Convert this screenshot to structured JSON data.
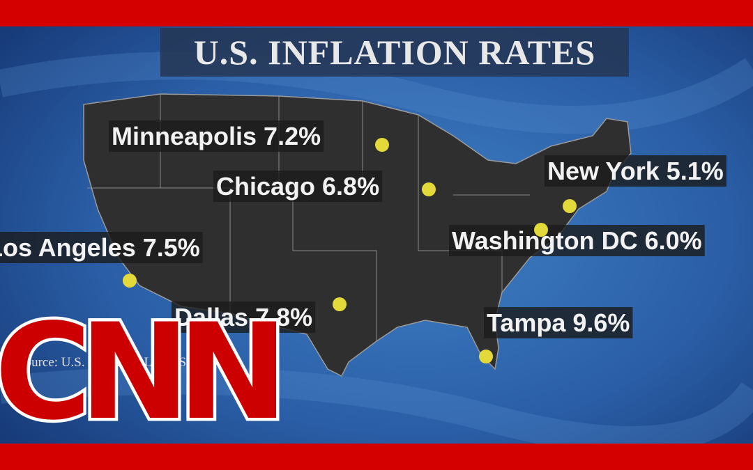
{
  "title": "U.S. INFLATION RATES",
  "cities": [
    {
      "city": "Minneapolis",
      "rate": "7.2%"
    },
    {
      "city": "Chicago",
      "rate": "6.8%"
    },
    {
      "city": "New York",
      "rate": "5.1%"
    },
    {
      "city": "Washington DC",
      "rate": "6.0%"
    },
    {
      "city": "Los Angeles",
      "rate": "7.5%"
    },
    {
      "city": "Dallas",
      "rate": "7.8%"
    },
    {
      "city": "Tampa",
      "rate": "9.6%"
    }
  ],
  "source": "Source: U.S. Bureau of Labor Statistics",
  "logo": "CNN"
}
